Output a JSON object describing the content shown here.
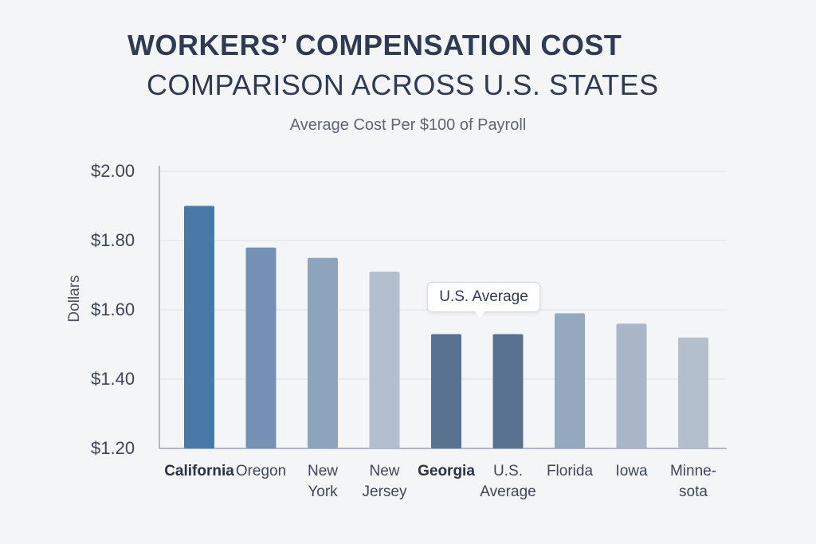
{
  "title": {
    "line1": "WORKERS’ COMPENSATION COST",
    "line2": "COMPARISON ACROSS U.S. STATES"
  },
  "subtitle": "Average Cost Per $100 of Payroll",
  "callout": "U.S. Average",
  "colors": {
    "background": "#f4f5f7",
    "grid": "#dde1e6",
    "axis": "#8a93a0"
  },
  "chart_data": {
    "type": "bar",
    "title": "WORKERS’ COMPENSATION COST COMPARISON ACROSS U.S. STATES",
    "subtitle": "Average Cost Per $100 of Payroll",
    "xlabel": "",
    "ylabel": "Dollars",
    "ylim": [
      1.2,
      2.0
    ],
    "yticks": [
      2.0,
      1.8,
      1.6,
      1.4,
      1.2
    ],
    "ytick_labels": [
      "$2.00",
      "$1.80",
      "$1.60",
      "$1.40",
      "$1.20"
    ],
    "grid": true,
    "categories": [
      {
        "lines": [
          "California"
        ],
        "bold": true
      },
      {
        "lines": [
          "Oregon"
        ],
        "bold": false
      },
      {
        "lines": [
          "New",
          "York"
        ],
        "bold": false
      },
      {
        "lines": [
          "New",
          "Jersey"
        ],
        "bold": false
      },
      {
        "lines": [
          "Georgia"
        ],
        "bold": true
      },
      {
        "lines": [
          "U.S.",
          "Average"
        ],
        "bold": false
      },
      {
        "lines": [
          "Florida"
        ],
        "bold": false
      },
      {
        "lines": [
          "Iowa"
        ],
        "bold": false
      },
      {
        "lines": [
          "Minne-",
          "sota"
        ],
        "bold": false
      }
    ],
    "values": [
      1.9,
      1.78,
      1.75,
      1.71,
      1.53,
      1.53,
      1.59,
      1.56,
      1.52
    ],
    "bar_colors": [
      "#4a78a6",
      "#7592b6",
      "#8ea4bd",
      "#b3bfcf",
      "#5a7291",
      "#5a7291",
      "#94a8bf",
      "#a8b6c7",
      "#b3bfcd"
    ]
  }
}
